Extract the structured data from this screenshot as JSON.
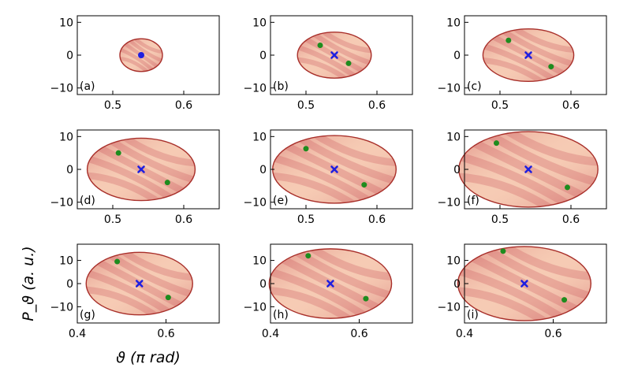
{
  "figure": {
    "ylabel": "P_ϑ (a. u.)",
    "xlabel": "ϑ (π rad)",
    "colors": {
      "ellipse_fill": "#f6cbb4",
      "ellipse_edge": "#a82f2a",
      "streak_dark": "#c9535a",
      "center_marker": "#1f1fe0",
      "point_marker": "#1e8c1e"
    }
  },
  "chart_data": [
    {
      "label": "(a)",
      "type": "scatter",
      "xlim": [
        0.45,
        0.65
      ],
      "ylim": [
        -12,
        12
      ],
      "xticks": [
        0.5,
        0.6
      ],
      "yticks": [
        -10,
        0,
        10
      ],
      "center": [
        0.54,
        0
      ],
      "ellipse_half_width": 0.03,
      "ellipse_half_height": 5,
      "center_marker": "dot",
      "points": []
    },
    {
      "label": "(b)",
      "type": "scatter",
      "xlim": [
        0.45,
        0.65
      ],
      "ylim": [
        -12,
        12
      ],
      "xticks": [
        0.5,
        0.6
      ],
      "yticks": [
        -10,
        0,
        10
      ],
      "center": [
        0.54,
        0
      ],
      "ellipse_half_width": 0.052,
      "ellipse_half_height": 7,
      "center_marker": "x",
      "points": [
        [
          0.52,
          3
        ],
        [
          0.56,
          -2.5
        ]
      ]
    },
    {
      "label": "(c)",
      "type": "scatter",
      "xlim": [
        0.45,
        0.65
      ],
      "ylim": [
        -12,
        12
      ],
      "xticks": [
        0.5,
        0.6
      ],
      "yticks": [
        -10,
        0,
        10
      ],
      "center": [
        0.54,
        0
      ],
      "ellipse_half_width": 0.064,
      "ellipse_half_height": 8,
      "center_marker": "x",
      "points": [
        [
          0.512,
          4.5
        ],
        [
          0.572,
          -3.5
        ]
      ]
    },
    {
      "label": "(d)",
      "type": "scatter",
      "xlim": [
        0.45,
        0.65
      ],
      "ylim": [
        -12,
        12
      ],
      "xticks": [
        0.5,
        0.6
      ],
      "yticks": [
        -10,
        0,
        10
      ],
      "center": [
        0.54,
        0
      ],
      "ellipse_half_width": 0.076,
      "ellipse_half_height": 9.5,
      "center_marker": "x",
      "points": [
        [
          0.508,
          5
        ],
        [
          0.577,
          -4
        ]
      ]
    },
    {
      "label": "(e)",
      "type": "scatter",
      "xlim": [
        0.45,
        0.65
      ],
      "ylim": [
        -12,
        12
      ],
      "xticks": [
        0.5,
        0.6
      ],
      "yticks": [
        -10,
        0,
        10
      ],
      "center": [
        0.54,
        0
      ],
      "ellipse_half_width": 0.087,
      "ellipse_half_height": 10.3,
      "center_marker": "x",
      "points": [
        [
          0.5,
          6.3
        ],
        [
          0.582,
          -4.7
        ]
      ]
    },
    {
      "label": "(f)",
      "type": "scatter",
      "xlim": [
        0.45,
        0.65
      ],
      "ylim": [
        -12,
        12
      ],
      "xticks": [
        0.5,
        0.6
      ],
      "yticks": [
        -10,
        0,
        10
      ],
      "center": [
        0.54,
        0
      ],
      "ellipse_half_width": 0.098,
      "ellipse_half_height": 11.5,
      "center_marker": "x",
      "points": [
        [
          0.495,
          8
        ],
        [
          0.595,
          -5.5
        ]
      ]
    },
    {
      "label": "(g)",
      "type": "scatter",
      "xlim": [
        0.4,
        0.72
      ],
      "ylim": [
        -17,
        17
      ],
      "xticks": [
        0.4,
        0.6
      ],
      "yticks": [
        -10,
        0,
        10
      ],
      "center": [
        0.54,
        0
      ],
      "ellipse_half_width": 0.12,
      "ellipse_half_height": 13.5,
      "center_marker": "x",
      "points": [
        [
          0.49,
          9.5
        ],
        [
          0.605,
          -6
        ]
      ]
    },
    {
      "label": "(h)",
      "type": "scatter",
      "xlim": [
        0.4,
        0.72
      ],
      "ylim": [
        -17,
        17
      ],
      "xticks": [
        0.4,
        0.6
      ],
      "yticks": [
        -10,
        0,
        10
      ],
      "center": [
        0.535,
        0
      ],
      "ellipse_half_width": 0.138,
      "ellipse_half_height": 15,
      "center_marker": "x",
      "points": [
        [
          0.485,
          12
        ],
        [
          0.615,
          -6.5
        ]
      ]
    },
    {
      "label": "(i)",
      "type": "scatter",
      "xlim": [
        0.4,
        0.72
      ],
      "ylim": [
        -17,
        17
      ],
      "xticks": [
        0.4,
        0.6
      ],
      "yticks": [
        -10,
        0,
        10
      ],
      "center": [
        0.535,
        0
      ],
      "ellipse_half_width": 0.15,
      "ellipse_half_height": 16,
      "center_marker": "x",
      "points": [
        [
          0.487,
          14
        ],
        [
          0.625,
          -7
        ]
      ]
    }
  ]
}
